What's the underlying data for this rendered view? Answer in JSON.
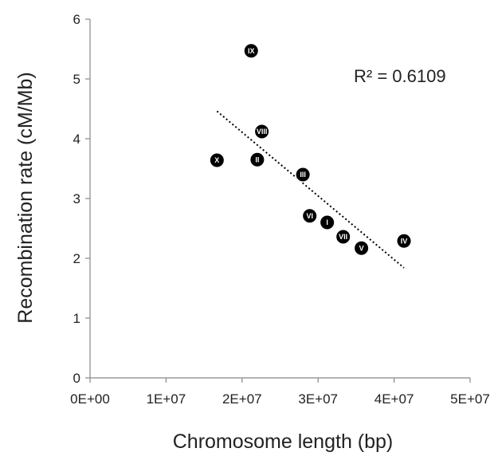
{
  "chart_data": {
    "type": "scatter",
    "title": "",
    "xlabel": "Chromosome length (bp)",
    "ylabel": "Recombination rate (cM/Mb)",
    "xlim": [
      0,
      50000000
    ],
    "ylim": [
      0,
      6
    ],
    "x_ticks": [
      0,
      10000000,
      20000000,
      30000000,
      40000000,
      50000000
    ],
    "x_tick_labels": [
      "0E+00",
      "1E+07",
      "2E+07",
      "3E+07",
      "4E+07",
      "5E+07"
    ],
    "y_ticks": [
      0,
      1,
      2,
      3,
      4,
      5,
      6
    ],
    "y_tick_labels": [
      "0",
      "1",
      "2",
      "3",
      "4",
      "5",
      "6"
    ],
    "grid": false,
    "marker_color": "#000000",
    "marker_label_color": "#ffffff",
    "points": [
      {
        "label": "I",
        "x": 31200000,
        "y": 2.6
      },
      {
        "label": "II",
        "x": 22000000,
        "y": 3.65
      },
      {
        "label": "III",
        "x": 28000000,
        "y": 3.4
      },
      {
        "label": "IV",
        "x": 41300000,
        "y": 2.29
      },
      {
        "label": "V",
        "x": 35700000,
        "y": 2.17
      },
      {
        "label": "VI",
        "x": 28900000,
        "y": 2.71
      },
      {
        "label": "VII",
        "x": 33300000,
        "y": 2.36
      },
      {
        "label": "VIII",
        "x": 22600000,
        "y": 4.12
      },
      {
        "label": "IX",
        "x": 21200000,
        "y": 5.47
      },
      {
        "label": "X",
        "x": 16700000,
        "y": 3.64
      }
    ],
    "trendline": {
      "style": "dotted",
      "x": [
        16700000,
        41300000
      ],
      "y": [
        4.46,
        1.84
      ],
      "annotation": "R² = 0.6109"
    }
  }
}
